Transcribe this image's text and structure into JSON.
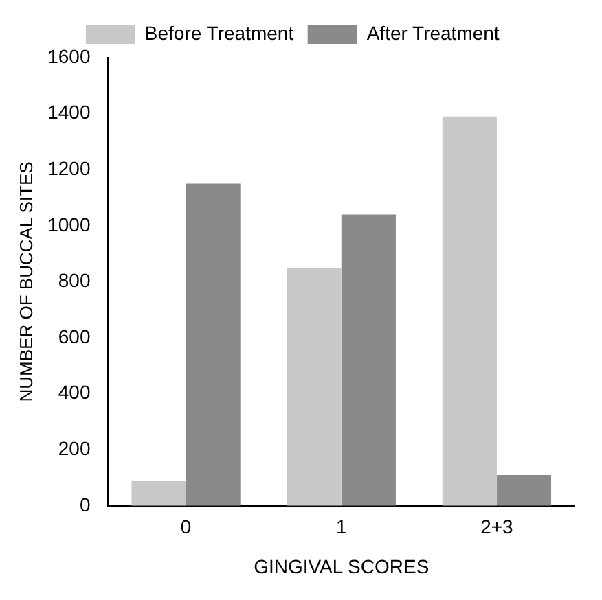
{
  "chart_data": {
    "type": "bar",
    "xlabel": "GINGIVAL SCORES",
    "ylabel": "NUMBER OF BUCCAL SITES",
    "categories": [
      "0",
      "1",
      "2+3"
    ],
    "series": [
      {
        "name": "Before Treatment",
        "color": "#c8c8c8",
        "values": [
          90,
          850,
          1390
        ]
      },
      {
        "name": "After Treatment",
        "color": "#8a8a8a",
        "values": [
          1150,
          1040,
          110
        ]
      }
    ],
    "ylim": [
      0,
      1600
    ],
    "yticks": [
      0,
      200,
      400,
      600,
      800,
      1000,
      1200,
      1400,
      1600
    ],
    "grid": false,
    "legend": "top"
  }
}
